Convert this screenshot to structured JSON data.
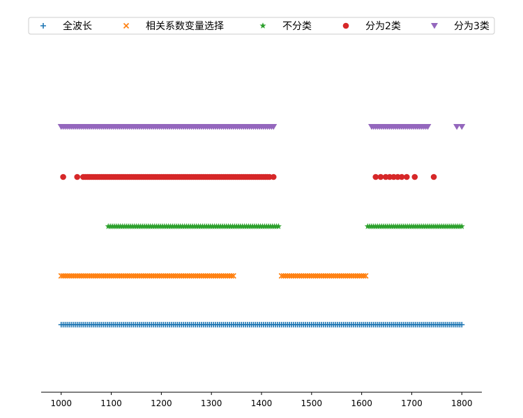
{
  "chart_data": {
    "type": "scatter",
    "title": "",
    "xlabel": "",
    "ylabel": "",
    "xlim": [
      960,
      1840
    ],
    "ylim": [
      0,
      6
    ],
    "xticks": [
      "1000",
      "1100",
      "1200",
      "1300",
      "1400",
      "1500",
      "1600",
      "1700",
      "1800"
    ],
    "legend_position": "top",
    "series": [
      {
        "name": "全波长",
        "marker": "plus",
        "color": "#1f77b4",
        "y": 1,
        "ranges": [
          [
            1000,
            1800,
            4
          ]
        ],
        "points": []
      },
      {
        "name": "相关系数变量选择",
        "marker": "x",
        "color": "#ff7f0e",
        "y": 2,
        "ranges": [
          [
            1000,
            1346,
            4
          ],
          [
            1440,
            1608,
            4
          ]
        ],
        "points": []
      },
      {
        "name": "不分类",
        "marker": "star",
        "color": "#2ca02c",
        "y": 3,
        "ranges": [
          [
            1094,
            1434,
            4
          ],
          [
            1612,
            1800,
            4
          ]
        ],
        "points": []
      },
      {
        "name": "分为2类",
        "marker": "circle",
        "color": "#d62728",
        "y": 4,
        "ranges": [
          [
            1044,
            1418,
            4
          ]
        ],
        "points": [
          1004,
          1032,
          1424,
          1628,
          1638,
          1648,
          1656,
          1664,
          1672,
          1680,
          1690,
          1706,
          1744
        ]
      },
      {
        "name": "分为3类",
        "marker": "triangle_down",
        "color": "#9467bd",
        "y": 5,
        "ranges": [
          [
            1000,
            1424,
            4
          ],
          [
            1620,
            1732,
            4
          ]
        ],
        "points": [
          1790,
          1800
        ]
      }
    ]
  }
}
